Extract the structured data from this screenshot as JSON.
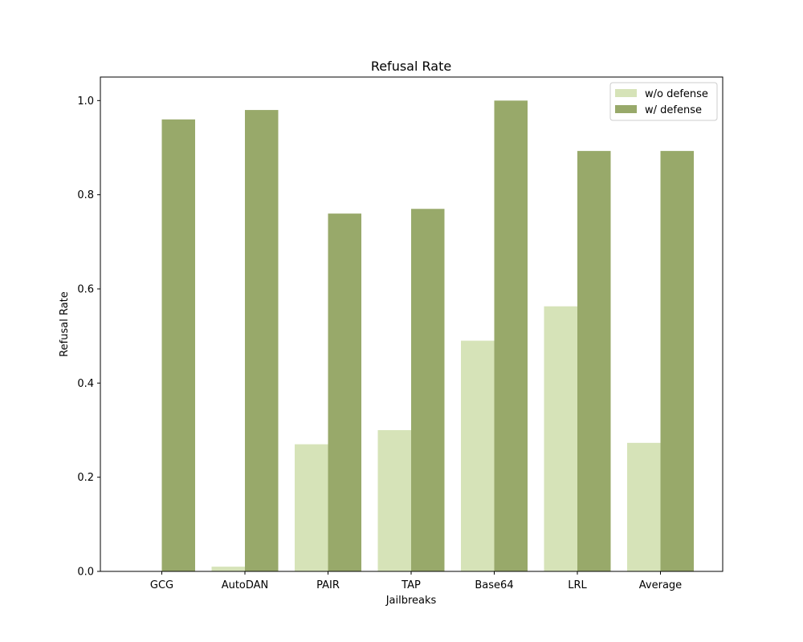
{
  "chart_data": {
    "type": "bar",
    "title": "Refusal Rate",
    "xlabel": "Jailbreaks",
    "ylabel": "Refusal Rate",
    "categories": [
      "GCG",
      "AutoDAN",
      "PAIR",
      "TAP",
      "Base64",
      "LRL",
      "Average"
    ],
    "series": [
      {
        "name": "w/o defense",
        "color": "#d6e3b8",
        "values": [
          0.0,
          0.01,
          0.27,
          0.3,
          0.49,
          0.563,
          0.273
        ]
      },
      {
        "name": "w/ defense",
        "color": "#98a96a",
        "values": [
          0.96,
          0.98,
          0.76,
          0.77,
          1.0,
          0.893,
          0.893
        ]
      }
    ],
    "ylim": [
      0,
      1.05
    ],
    "yticks": [
      "0.0",
      "0.2",
      "0.4",
      "0.6",
      "0.8",
      "1.0"
    ],
    "grid": false,
    "legend_position": "top-right"
  }
}
